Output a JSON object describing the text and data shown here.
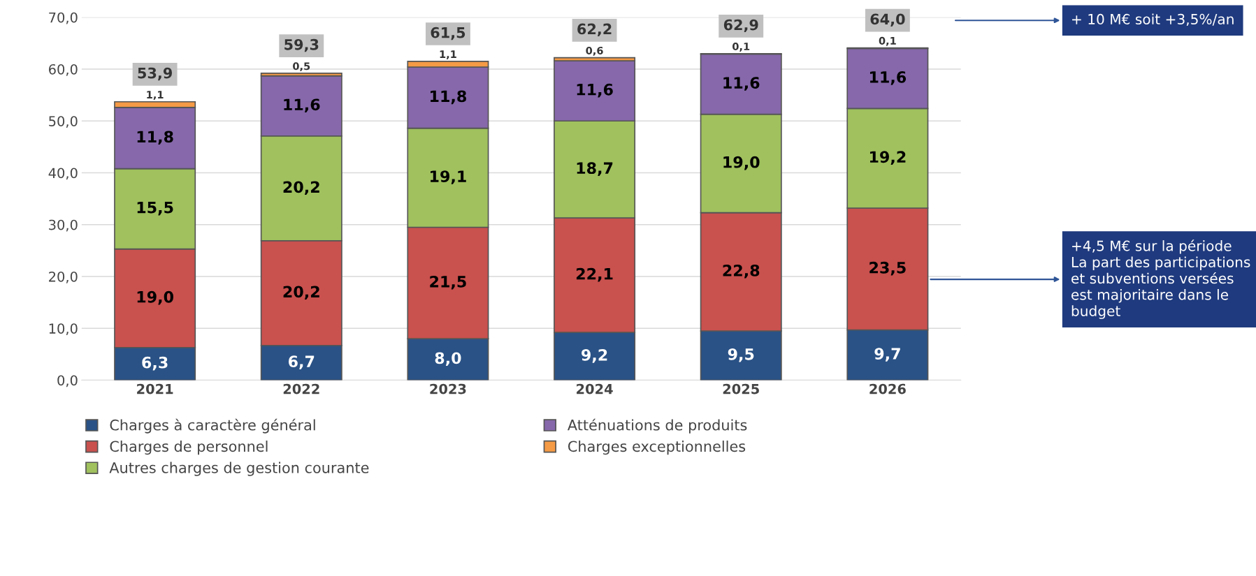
{
  "chart_data": {
    "type": "bar",
    "stacked": true,
    "categories": [
      "2021",
      "2022",
      "2023",
      "2024",
      "2025",
      "2026"
    ],
    "series": [
      {
        "name": "Charges à caractère général",
        "color": "#2a5286",
        "values": [
          6.3,
          6.7,
          8.0,
          9.2,
          9.5,
          9.7
        ],
        "value_labels": [
          "6,3",
          "6,7",
          "8,0",
          "9,2",
          "9,5",
          "9,7"
        ]
      },
      {
        "name": "Charges de personnel",
        "color": "#c9514e",
        "values": [
          19.0,
          20.2,
          21.5,
          22.1,
          22.8,
          23.5
        ],
        "value_labels": [
          "19,0",
          "20,2",
          "21,5",
          "22,1",
          "22,8",
          "23,5"
        ]
      },
      {
        "name": "Autres charges de gestion courante",
        "color": "#a0c15e",
        "values": [
          15.5,
          20.2,
          19.1,
          18.7,
          19.0,
          19.2
        ],
        "value_labels": [
          "15,5",
          "20,2",
          "19,1",
          "18,7",
          "19,0",
          "19,2"
        ]
      },
      {
        "name": "Atténuations de produits",
        "color": "#8668ab",
        "values": [
          11.8,
          11.6,
          11.8,
          11.6,
          11.6,
          11.6
        ],
        "value_labels": [
          "11,8",
          "11,6",
          "11,8",
          "11,6",
          "11,6",
          "11,6"
        ]
      },
      {
        "name": "Charges exceptionnelles",
        "color": "#f59a45",
        "values": [
          1.1,
          0.5,
          1.1,
          0.6,
          0.1,
          0.1
        ],
        "value_labels": [
          "1,1",
          "0,5",
          "1,1",
          "0,6",
          "0,1",
          "0,1"
        ]
      }
    ],
    "totals": [
      "53,9",
      "59,3",
      "61,5",
      "62,2",
      "62,9",
      "64,0"
    ],
    "ylim": [
      0,
      70
    ],
    "yticks": [
      {
        "value": 0,
        "label": "0,0"
      },
      {
        "value": 10,
        "label": "10,0"
      },
      {
        "value": 20,
        "label": "20,0"
      },
      {
        "value": 30,
        "label": "30,0"
      },
      {
        "value": 40,
        "label": "40,0"
      },
      {
        "value": 50,
        "label": "50,0"
      },
      {
        "value": 60,
        "label": "60,0"
      },
      {
        "value": 70,
        "label": "70,0"
      }
    ],
    "grid": "y",
    "legend": "bottom",
    "annotations": [
      "+ 10 M€ soit +3,5%/an",
      "+4,5 M€ sur la période\nLa part des participations\net subventions versées\nest majoritaire dans le\nbudget"
    ]
  }
}
